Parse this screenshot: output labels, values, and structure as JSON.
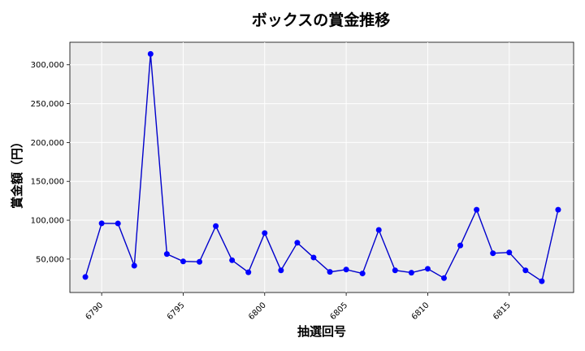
{
  "chart_data": {
    "type": "line",
    "title": "ボックスの賞金推移",
    "xlabel": "抽選回号",
    "ylabel": "賞金額（円）",
    "x": [
      6789,
      6790,
      6791,
      6792,
      6793,
      6794,
      6795,
      6796,
      6797,
      6798,
      6799,
      6800,
      6801,
      6802,
      6803,
      6804,
      6805,
      6806,
      6807,
      6808,
      6809,
      6810,
      6811,
      6812,
      6813,
      6814,
      6815,
      6816,
      6817,
      6818
    ],
    "series": [
      {
        "values": [
          27000,
          96000,
          95800,
          41500,
          314000,
          56500,
          47000,
          46500,
          92500,
          48500,
          33000,
          83500,
          35500,
          71000,
          52000,
          33500,
          36500,
          31500,
          87500,
          35500,
          32500,
          37500,
          25500,
          67500,
          113500,
          57500,
          58500,
          35500,
          21500,
          113500
        ]
      }
    ],
    "xticks": [
      6790,
      6795,
      6800,
      6805,
      6810,
      6815
    ],
    "xtick_labels": [
      "6790",
      "6795",
      "6800",
      "6805",
      "6810",
      "6815"
    ],
    "yticks": [
      50000,
      100000,
      150000,
      200000,
      250000,
      300000
    ],
    "ytick_labels": [
      "50,000",
      "100,000",
      "150,000",
      "200,000",
      "250,000",
      "300,000"
    ],
    "xlim": [
      6788.05,
      6818.95
    ],
    "ylim": [
      7000,
      329000
    ],
    "grid": true,
    "colors": {
      "line": "#0000cc",
      "marker": "#0000ff",
      "plot_bg": "#ebebeb",
      "grid": "#ffffff"
    }
  }
}
